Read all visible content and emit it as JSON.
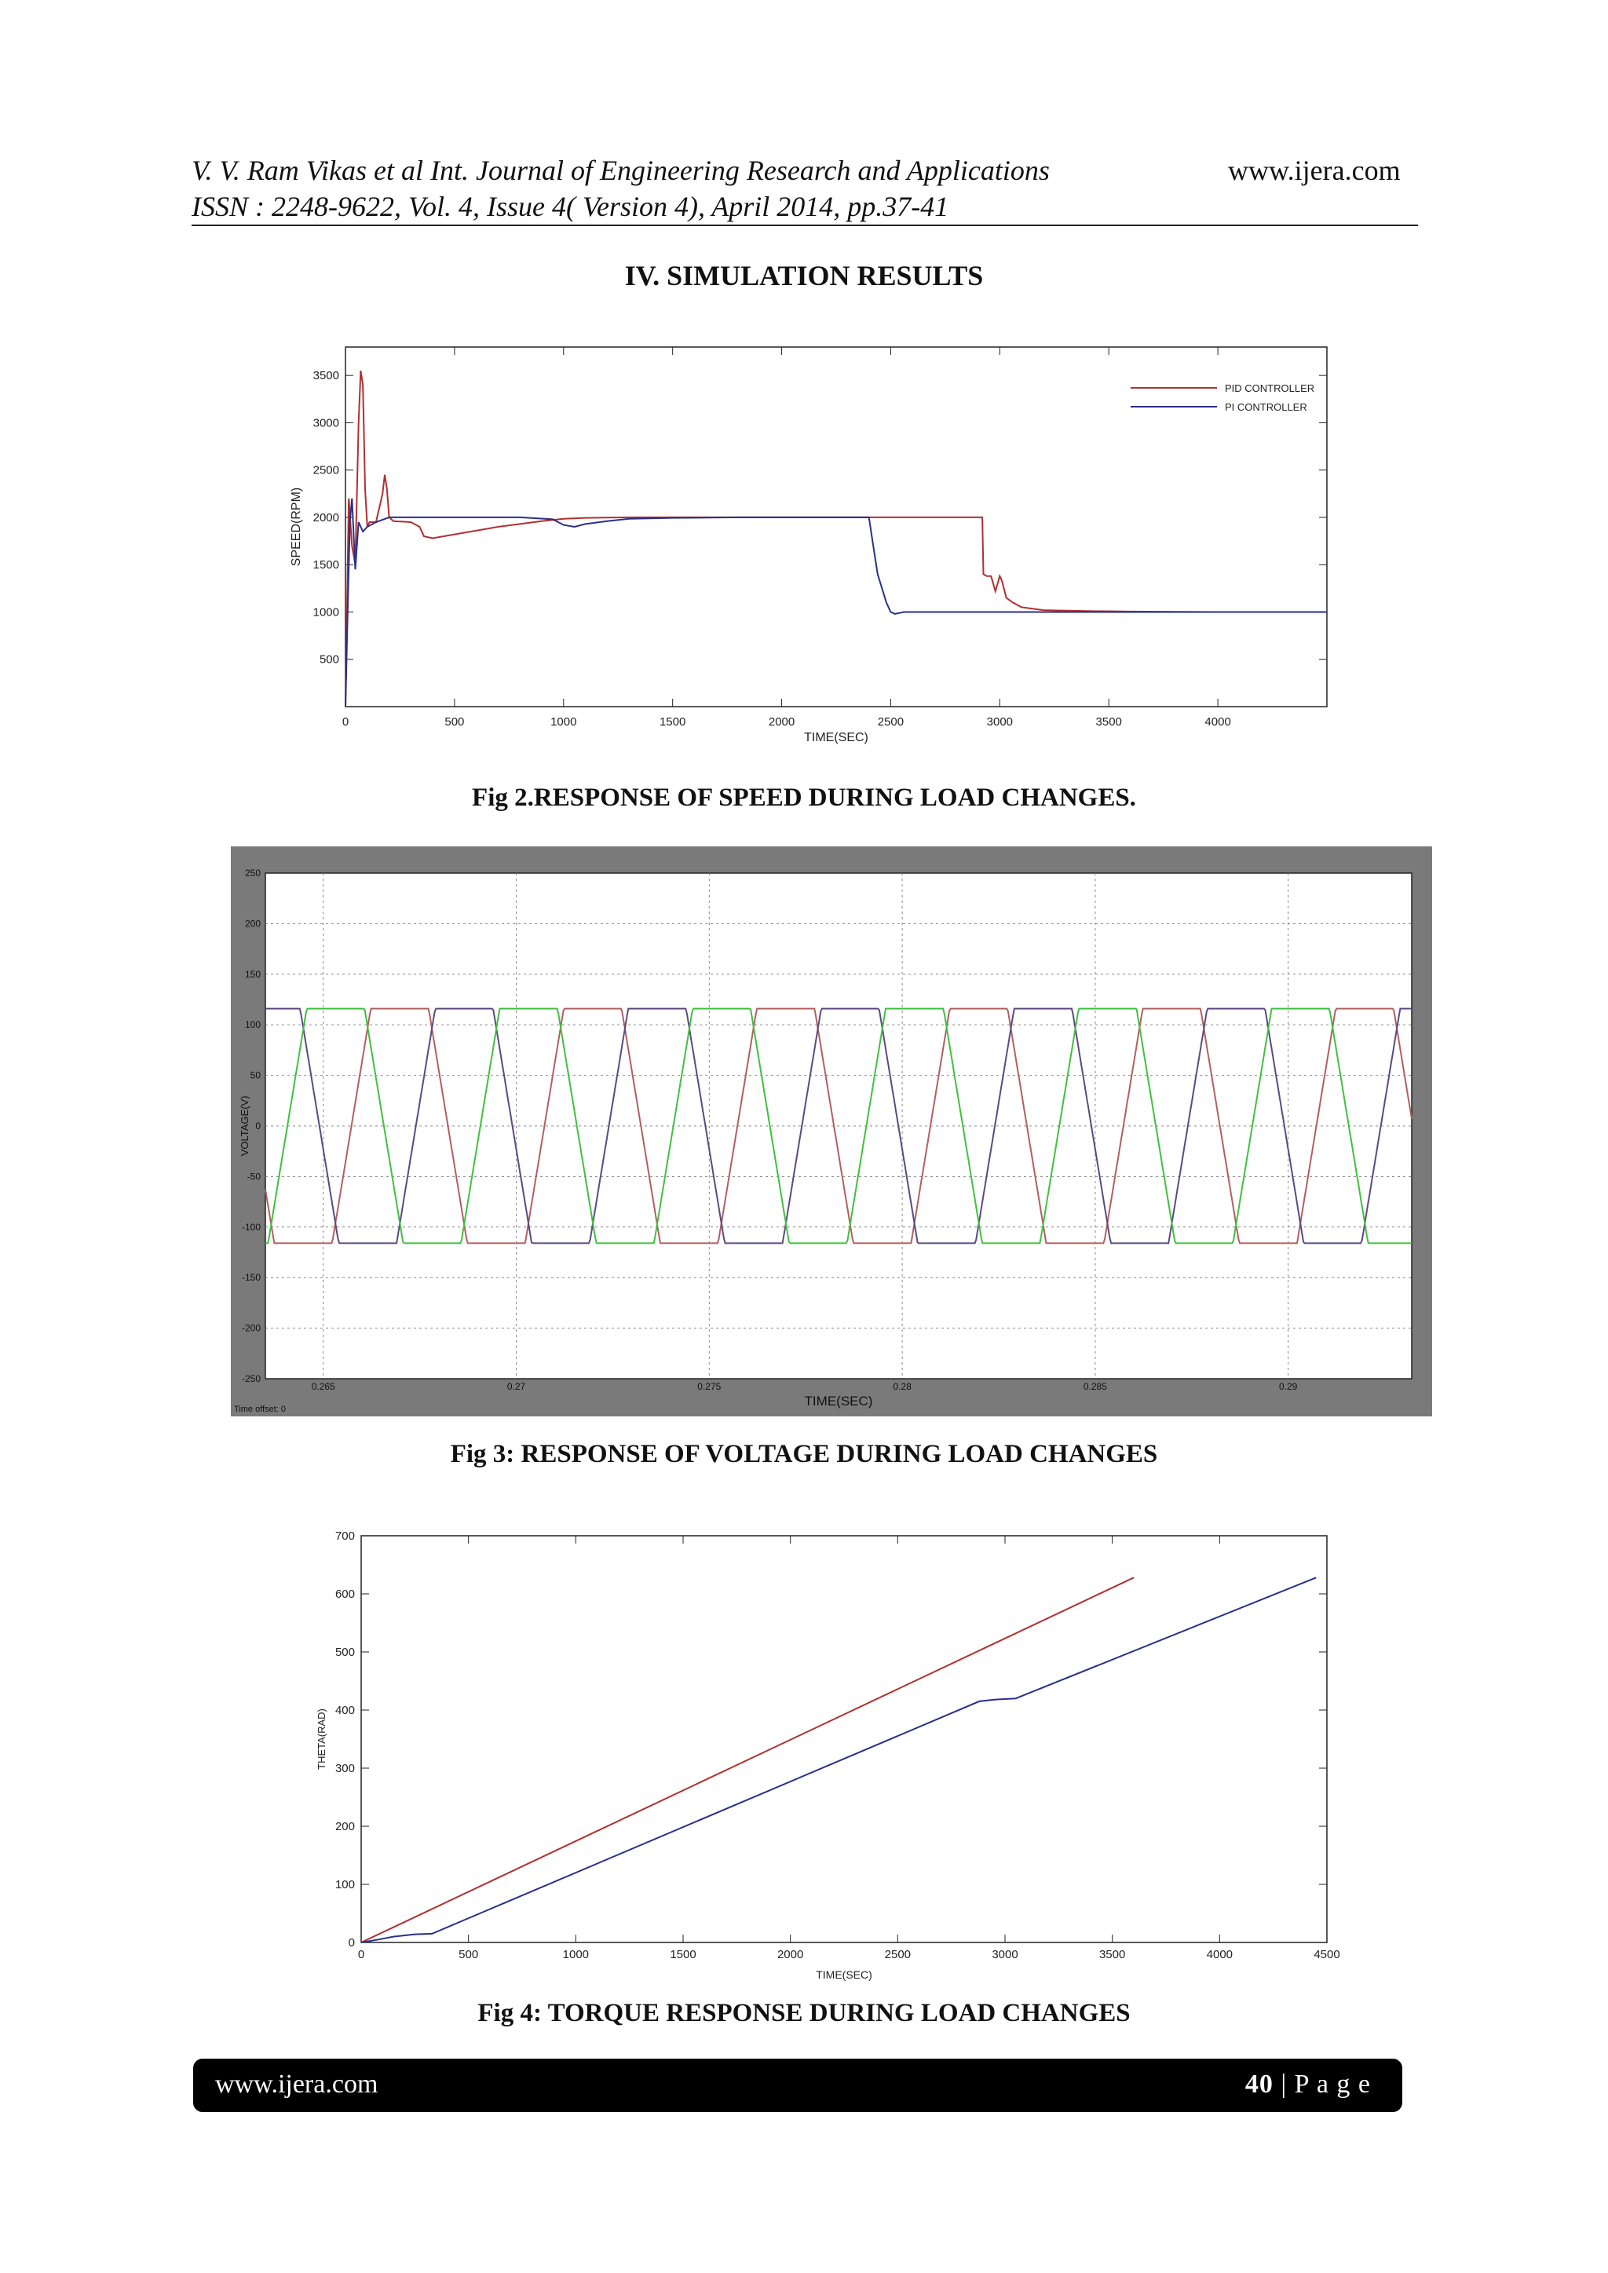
{
  "header": {
    "line1": "V. V. Ram Vikas et al Int. Journal of Engineering Research and Applications",
    "line2": "ISSN : 2248-9622, Vol. 4, Issue 4( Version 4), April 2014, pp.37-41",
    "site": "www.ijera.com"
  },
  "section_title": "IV. SIMULATION RESULTS",
  "captions": {
    "fig2": "Fig 2.RESPONSE OF SPEED DURING LOAD CHANGES.",
    "fig3": "Fig 3: RESPONSE OF VOLTAGE DURING LOAD CHANGES",
    "fig4": "Fig 4: TORQUE RESPONSE DURING LOAD CHANGES"
  },
  "footer": {
    "site": "www.ijera.com",
    "page_number": "40",
    "page_suffix": " | P a g e"
  },
  "chart_data": [
    {
      "type": "line",
      "xlabel": "TIME(SEC)",
      "ylabel": "SPEED(RPM)",
      "xlim": [
        0,
        4500
      ],
      "ylim": [
        0,
        3800
      ],
      "x_ticks": [
        0,
        500,
        1000,
        1500,
        2000,
        2500,
        3000,
        3500,
        4000
      ],
      "y_ticks": [
        500,
        1000,
        1500,
        2000,
        2500,
        3000,
        3500
      ],
      "legend_position": "top-right",
      "colors": {
        "pid": "#b03030",
        "pi": "#2a2f8a"
      },
      "series": [
        {
          "name": "PID CONTROLLER",
          "x": [
            0,
            15,
            30,
            45,
            60,
            70,
            80,
            90,
            100,
            110,
            140,
            170,
            180,
            190,
            200,
            220,
            300,
            340,
            360,
            400,
            500,
            700,
            900,
            1000,
            1100,
            1300,
            1500,
            1800,
            2000,
            2200,
            2400,
            2600,
            2800,
            2920,
            2925,
            2940,
            2960,
            2980,
            3000,
            3010,
            3030,
            3060,
            3100,
            3200,
            3400,
            3600,
            4000,
            4500
          ],
          "y": [
            0,
            2200,
            1700,
            1500,
            3000,
            3550,
            3400,
            2300,
            1900,
            1950,
            1950,
            2250,
            2450,
            2300,
            2000,
            1960,
            1950,
            1900,
            1800,
            1780,
            1820,
            1900,
            1960,
            1985,
            1995,
            2000,
            2000,
            2000,
            2000,
            2000,
            2000,
            2000,
            2000,
            2000,
            1400,
            1380,
            1380,
            1220,
            1380,
            1330,
            1150,
            1100,
            1050,
            1020,
            1010,
            1005,
            1000,
            1000
          ]
        },
        {
          "name": "PI CONTROLLER",
          "x": [
            0,
            10,
            20,
            30,
            45,
            60,
            80,
            100,
            140,
            200,
            300,
            500,
            800,
            950,
            1000,
            1050,
            1100,
            1200,
            1300,
            1500,
            1800,
            2000,
            2200,
            2400,
            2420,
            2440,
            2480,
            2500,
            2520,
            2560,
            2700,
            3000,
            3500,
            4000,
            4500
          ],
          "y": [
            0,
            1000,
            1950,
            2200,
            1450,
            1950,
            1850,
            1900,
            1950,
            2000,
            2000,
            2000,
            2000,
            1980,
            1920,
            1900,
            1930,
            1960,
            1985,
            1995,
            2000,
            2000,
            2000,
            2000,
            1700,
            1400,
            1100,
            1000,
            980,
            1000,
            1000,
            1000,
            1000,
            1000,
            1000
          ]
        }
      ]
    },
    {
      "type": "line",
      "xlabel": "TIME(SEC)",
      "ylabel": "VOLTAGE(V)",
      "xlim": [
        0.2635,
        0.2932
      ],
      "ylim": [
        -250,
        250
      ],
      "x_ticks": [
        0.265,
        0.27,
        0.275,
        0.28,
        0.285,
        0.29
      ],
      "y_ticks": [
        250,
        200,
        150,
        100,
        50,
        0,
        -50,
        -100,
        -150,
        -200,
        -250
      ],
      "time_offset": "Time offset:  0",
      "amplitude": 116,
      "period": 0.005,
      "phase_offsets": [
        0.00023,
        0.0019,
        0.00357
      ],
      "colors": [
        "#b06060",
        "#5a4a80",
        "#40c040"
      ]
    },
    {
      "type": "line",
      "xlabel": "TIME(SEC)",
      "ylabel": "THETA(RAD)",
      "xlim": [
        0,
        4500
      ],
      "ylim": [
        0,
        700
      ],
      "x_ticks": [
        0,
        500,
        1000,
        1500,
        2000,
        2500,
        3000,
        3500,
        4000,
        4500
      ],
      "y_ticks": [
        0,
        100,
        200,
        300,
        400,
        500,
        600,
        700
      ],
      "colors": {
        "pid": "#b03030",
        "pi": "#2a2f8a"
      },
      "series": [
        {
          "x": [
            0,
            3600
          ],
          "y": [
            0,
            628
          ]
        },
        {
          "x": [
            0,
            80,
            150,
            250,
            330,
            2880,
            2950,
            3050,
            4450
          ],
          "y": [
            0,
            5,
            10,
            14,
            15,
            415,
            418,
            420,
            628
          ]
        }
      ]
    }
  ]
}
